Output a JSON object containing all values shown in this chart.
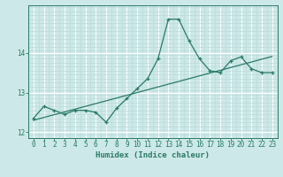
{
  "x_data": [
    0,
    1,
    2,
    3,
    4,
    5,
    6,
    7,
    8,
    9,
    10,
    11,
    12,
    13,
    14,
    15,
    16,
    17,
    18,
    19,
    20,
    21,
    22,
    23
  ],
  "y_curve": [
    12.35,
    12.65,
    12.55,
    12.45,
    12.55,
    12.55,
    12.5,
    12.25,
    12.6,
    12.85,
    13.1,
    13.35,
    13.85,
    14.85,
    14.85,
    14.3,
    13.85,
    13.55,
    13.5,
    13.8,
    13.9,
    13.6,
    13.5,
    13.5
  ],
  "y_trend": [
    12.3,
    12.37,
    12.44,
    12.51,
    12.58,
    12.65,
    12.72,
    12.79,
    12.86,
    12.93,
    13.0,
    13.07,
    13.14,
    13.21,
    13.28,
    13.35,
    13.42,
    13.49,
    13.56,
    13.63,
    13.7,
    13.77,
    13.84,
    13.91
  ],
  "xlabel": "Humidex (Indice chaleur)",
  "ylim": [
    11.85,
    15.2
  ],
  "xlim": [
    -0.5,
    23.5
  ],
  "yticks": [
    12,
    13,
    14
  ],
  "xticks": [
    0,
    1,
    2,
    3,
    4,
    5,
    6,
    7,
    8,
    9,
    10,
    11,
    12,
    13,
    14,
    15,
    16,
    17,
    18,
    19,
    20,
    21,
    22,
    23
  ],
  "bg_color": "#cce8e8",
  "line_color": "#2a7a68",
  "grid_major_color": "#ffffff",
  "grid_minor_color": "#bbdada"
}
